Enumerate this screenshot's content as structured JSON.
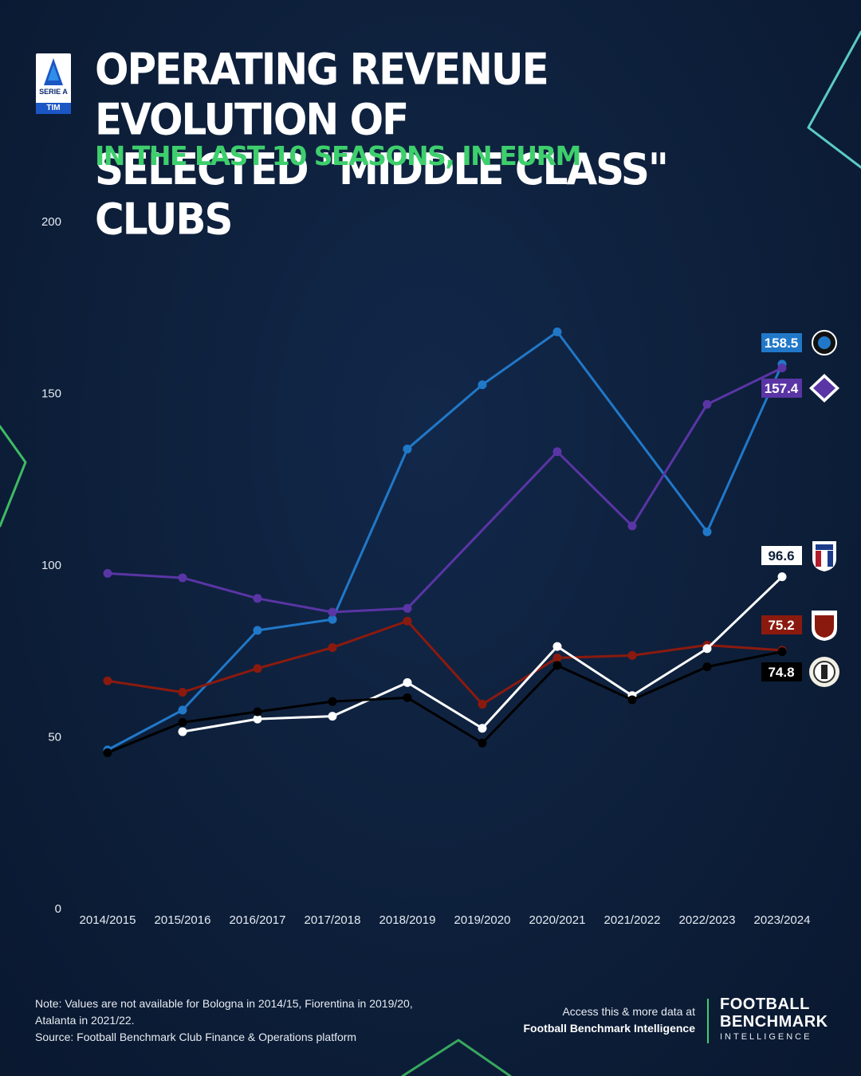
{
  "header": {
    "logo_label": "SERIE A",
    "logo_sponsor": "TIM",
    "title_line1": "OPERATING REVENUE EVOLUTION OF",
    "title_line2": "SELECTED \"MIDDLE CLASS\" CLUBS",
    "subtitle": "IN THE LAST 10 SEASONS, IN EURM"
  },
  "chart_data": {
    "type": "line",
    "title": "OPERATING REVENUE EVOLUTION OF SELECTED \"MIDDLE CLASS\" CLUBS",
    "subtitle": "IN THE LAST 10 SEASONS, IN EURM",
    "xlabel": "",
    "ylabel": "",
    "ylim": [
      0,
      200
    ],
    "yticks": [
      0,
      50,
      100,
      150,
      200
    ],
    "grid": false,
    "legend": "end-labels-right",
    "categories": [
      "2014/2015",
      "2015/2016",
      "2016/2017",
      "2017/2018",
      "2018/2019",
      "2019/2020",
      "2020/2021",
      "2021/2022",
      "2022/2023",
      "2023/2024"
    ],
    "series": [
      {
        "club": "Atalanta",
        "color": "#2178c8",
        "values": [
          46.2,
          57.8,
          81.0,
          84.2,
          133.8,
          152.5,
          167.9,
          null,
          109.7,
          158.5
        ],
        "end_label": "158.5",
        "badge": "atalanta-crest-icon"
      },
      {
        "club": "Fiorentina",
        "color": "#5a35a5",
        "values": [
          97.6,
          96.3,
          90.3,
          86.3,
          87.4,
          null,
          133.0,
          111.4,
          146.8,
          157.4
        ],
        "end_label": "157.4",
        "badge": "fiorentina-crest-icon"
      },
      {
        "club": "Torino",
        "color": "#8b1a0e",
        "values": [
          66.3,
          63.0,
          69.9,
          76.0,
          83.7,
          59.5,
          73.0,
          73.7,
          76.7,
          75.2
        ],
        "end_label": "75.2",
        "badge": "torino-crest-icon"
      },
      {
        "club": "Bologna",
        "color": "#ffffff",
        "values": [
          null,
          51.5,
          55.2,
          56.0,
          65.8,
          52.5,
          76.3,
          62.0,
          75.7,
          96.6
        ],
        "end_label": "96.6",
        "badge": "bologna-crest-icon"
      },
      {
        "club": "Udinese",
        "color": "#000000",
        "values": [
          45.4,
          54.2,
          57.3,
          60.3,
          61.4,
          48.2,
          70.8,
          60.8,
          70.4,
          74.8
        ],
        "end_label": "74.8",
        "badge": "udinese-crest-icon"
      }
    ]
  },
  "footer": {
    "note_line1": "Note: Values are not available for Bologna in 2014/15, Fiorentina in 2019/20,",
    "note_line2": "Atalanta in 2021/22.",
    "source": "Source: Football Benchmark Club Finance & Operations platform",
    "access_line1": "Access this & more data at",
    "access_line2": "Football Benchmark Intelligence",
    "brand_line1": "FOOTBALL",
    "brand_line2": "BENCHMARK",
    "brand_line3": "INTELLIGENCE"
  }
}
